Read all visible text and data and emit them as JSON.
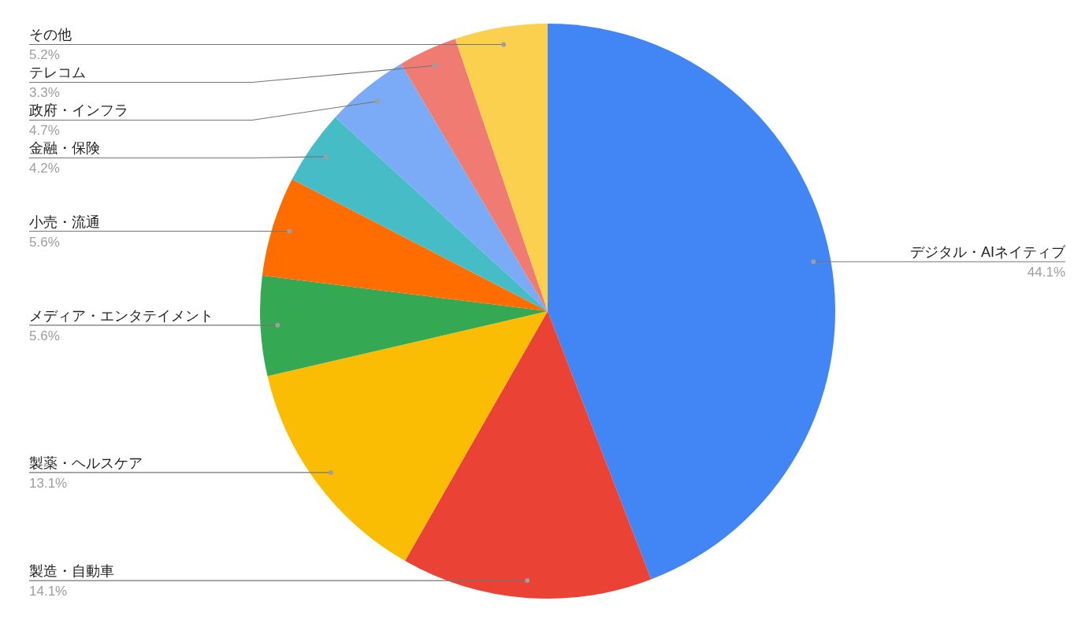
{
  "chart_data": {
    "type": "pie",
    "categories": [
      "デジタル・AIネイティブ",
      "製造・自動車",
      "製薬・ヘルスケア",
      "メディア・エンタテイメント",
      "小売・流通",
      "金融・保険",
      "政府・インフラ",
      "テレコム",
      "その他"
    ],
    "values": [
      44.1,
      14.1,
      13.1,
      5.6,
      5.6,
      4.2,
      4.7,
      3.3,
      5.2
    ],
    "colors": [
      "#4285f4",
      "#ea4335",
      "#fbbc04",
      "#34a853",
      "#ff6d01",
      "#46bdc6",
      "#7baaf7",
      "#f07b72",
      "#fcd04f"
    ],
    "value_labels": [
      "44.1%",
      "14.1%",
      "13.1%",
      "5.6%",
      "5.6%",
      "4.2%",
      "4.7%",
      "3.3%",
      "5.2%"
    ],
    "legend": false
  }
}
